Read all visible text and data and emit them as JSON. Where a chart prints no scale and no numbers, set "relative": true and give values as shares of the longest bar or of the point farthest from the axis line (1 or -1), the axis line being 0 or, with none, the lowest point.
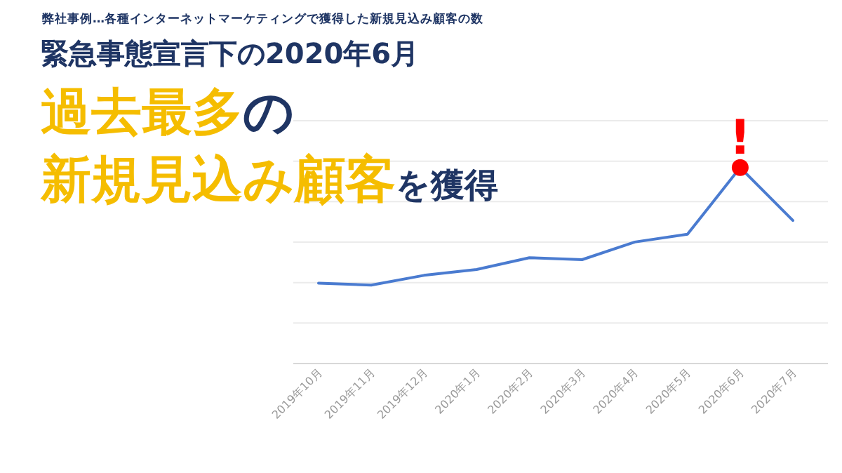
{
  "chart_data": {
    "type": "line",
    "relative": true,
    "grid": "y",
    "marker": "none",
    "subtitle": "弊社事例…各種インターネットマーケティングで獲得した新規見込み顧客の数",
    "title": "緊急事態宣言下の2020年6月",
    "annotations": [
      "過去最多",
      "の",
      "新規見込み顧客",
      "を獲得",
      {
        "text": "!",
        "x": "2020年6月",
        "y": 1
      }
    ],
    "categories": [
      "2019年10月",
      "2019年11月",
      "2019年12月",
      "2020年1月",
      "2020年2月",
      "2020年3月",
      "2020年4月",
      "2020年5月",
      "2020年6月",
      "2020年7月"
    ],
    "series": [
      {
        "color": "#4a7bd0",
        "values": [
          0.41,
          0.4,
          0.45,
          0.48,
          0.54,
          0.53,
          0.62,
          0.66,
          1,
          0.73
        ]
      }
    ]
  }
}
